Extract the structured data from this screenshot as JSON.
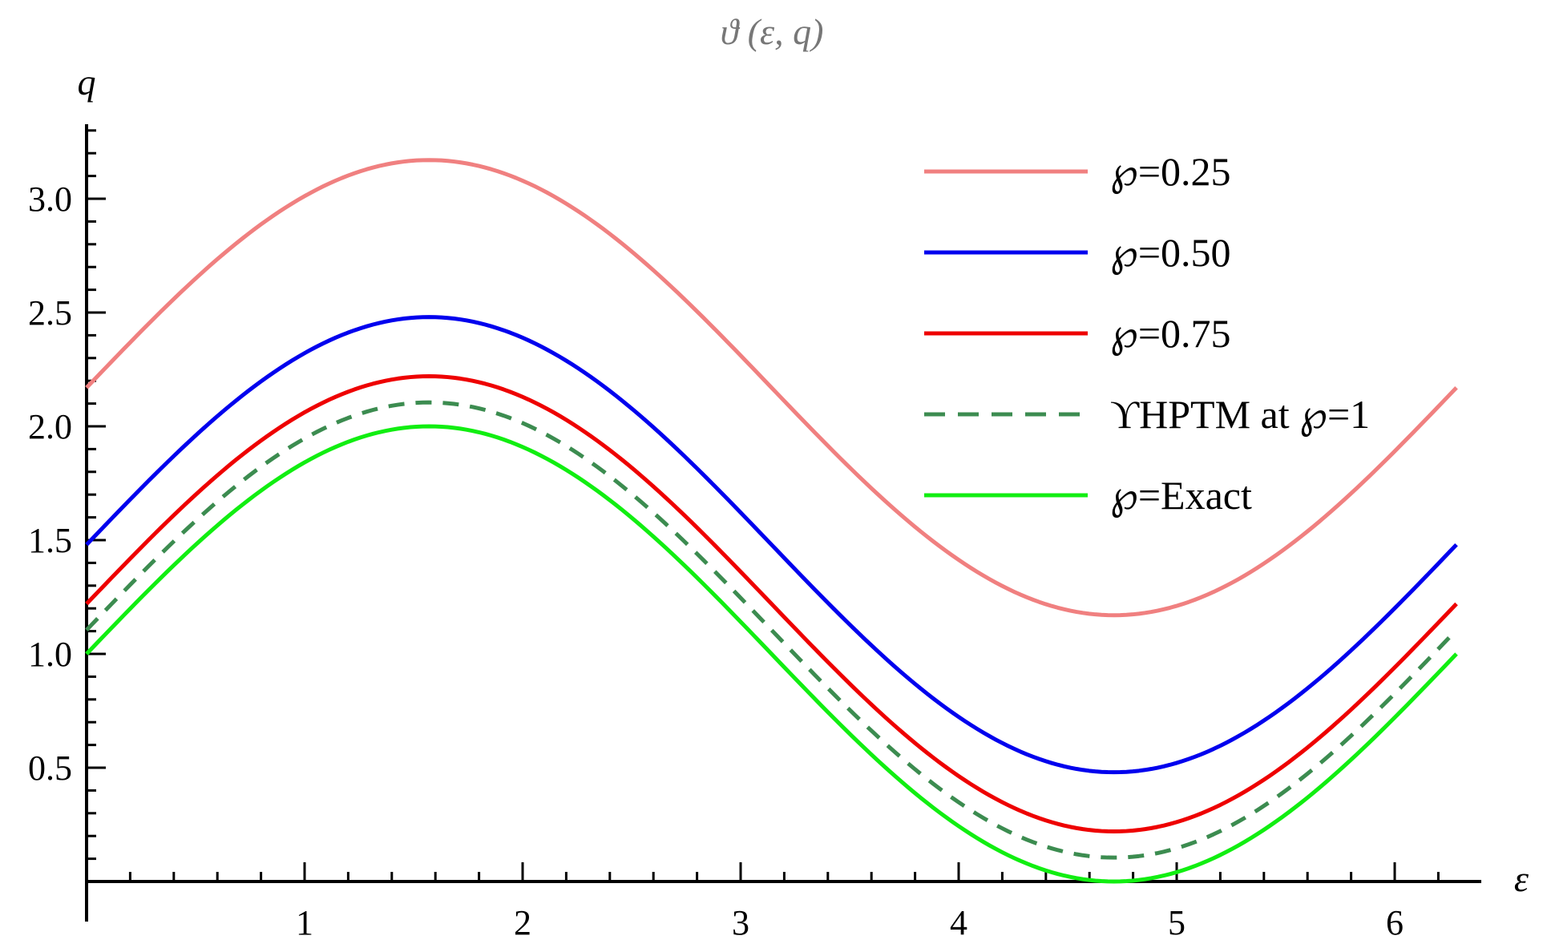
{
  "chart_data": {
    "type": "line",
    "title": "ϑ (ε, q)",
    "xlabel": "ε",
    "ylabel": "q",
    "xlim": [
      0,
      6.4
    ],
    "ylim": [
      0,
      3.3
    ],
    "x_ticks": [
      1,
      2,
      3,
      4,
      5,
      6
    ],
    "x_tick_labels": [
      "1",
      "2",
      "3",
      "4",
      "5",
      "6"
    ],
    "y_ticks": [
      0.5,
      1.0,
      1.5,
      2.0,
      2.5,
      3.0
    ],
    "y_tick_labels": [
      "0.5",
      "1.0",
      "1.5",
      "2.0",
      "2.5",
      "3.0"
    ],
    "x_range": [
      0,
      6.2832
    ],
    "function": "offset + sin(x)",
    "legend_position": "top-right",
    "series": [
      {
        "name": "℘=0.25",
        "offset": 2.17,
        "amplitude": 1.0,
        "color": "#f08080",
        "dashed": false
      },
      {
        "name": "℘=0.50",
        "offset": 1.48,
        "amplitude": 1.0,
        "color": "#0000ee",
        "dashed": false
      },
      {
        "name": "℘=0.75",
        "offset": 1.22,
        "amplitude": 1.0,
        "color": "#ee0000",
        "dashed": false
      },
      {
        "name": "ϒHPTM at ℘=1",
        "offset": 1.105,
        "amplitude": 1.0,
        "color": "#3c8c50",
        "dashed": true
      },
      {
        "name": "℘=Exact",
        "offset": 1.0,
        "amplitude": 1.0,
        "color": "#11ee11",
        "dashed": false
      }
    ]
  }
}
